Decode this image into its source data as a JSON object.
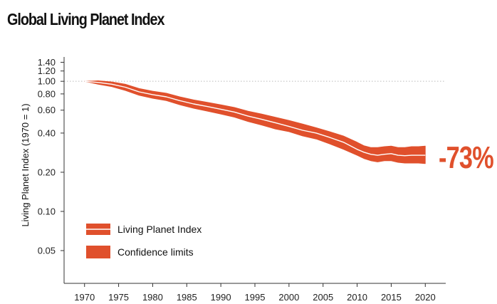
{
  "chart_data": {
    "type": "line",
    "title": "Global Living Planet Index",
    "xlabel": "",
    "ylabel": "Living Planet Index (1970 = 1)",
    "y_scale": "log",
    "xlim": [
      1967,
      2023
    ],
    "ylim": [
      0.028,
      1.5
    ],
    "x_ticks": [
      1970,
      1975,
      1980,
      1985,
      1990,
      1995,
      2000,
      2005,
      2010,
      2015,
      2020
    ],
    "y_ticks": [
      {
        "value": 1.4,
        "label": "1.40"
      },
      {
        "value": 1.2,
        "label": "1.20"
      },
      {
        "value": 1.0,
        "label": "1.00"
      },
      {
        "value": 0.8,
        "label": "0.80"
      },
      {
        "value": 0.6,
        "label": "0.60"
      },
      {
        "value": 0.4,
        "label": "0.40"
      },
      {
        "value": 0.2,
        "label": "0.20"
      },
      {
        "value": 0.1,
        "label": "0.10"
      },
      {
        "value": 0.05,
        "label": "0.05"
      }
    ],
    "reference_line": {
      "value": 1.0,
      "style": "dotted"
    },
    "series": [
      {
        "name": "Living Planet Index",
        "x": [
          1970,
          1972,
          1974,
          1976,
          1978,
          1980,
          1982,
          1984,
          1986,
          1988,
          1990,
          1992,
          1994,
          1996,
          1998,
          2000,
          2002,
          2004,
          2006,
          2008,
          2010,
          2011,
          2012,
          2013,
          2014,
          2015,
          2016,
          2017,
          2018,
          2019,
          2020
        ],
        "values": [
          1.0,
          0.98,
          0.95,
          0.9,
          0.83,
          0.79,
          0.76,
          0.71,
          0.67,
          0.64,
          0.61,
          0.58,
          0.54,
          0.51,
          0.48,
          0.45,
          0.42,
          0.4,
          0.37,
          0.34,
          0.3,
          0.285,
          0.275,
          0.27,
          0.275,
          0.278,
          0.27,
          0.268,
          0.27,
          0.27,
          0.27
        ],
        "lower": [
          1.0,
          0.95,
          0.91,
          0.85,
          0.78,
          0.74,
          0.71,
          0.66,
          0.62,
          0.59,
          0.56,
          0.53,
          0.49,
          0.46,
          0.43,
          0.41,
          0.38,
          0.36,
          0.33,
          0.3,
          0.27,
          0.255,
          0.245,
          0.24,
          0.245,
          0.245,
          0.238,
          0.235,
          0.235,
          0.235,
          0.233
        ],
        "upper": [
          1.0,
          1.01,
          0.99,
          0.95,
          0.88,
          0.84,
          0.81,
          0.76,
          0.72,
          0.69,
          0.66,
          0.63,
          0.59,
          0.56,
          0.53,
          0.5,
          0.47,
          0.44,
          0.41,
          0.38,
          0.34,
          0.32,
          0.31,
          0.31,
          0.315,
          0.318,
          0.31,
          0.31,
          0.315,
          0.315,
          0.318
        ]
      }
    ],
    "annotation": {
      "text": "-73%",
      "x": 2020,
      "y": 0.27
    },
    "legend": {
      "placement": "bottom-left",
      "entries": [
        {
          "label": "Living Planet Index",
          "symbol": "line"
        },
        {
          "label": "Confidence limits",
          "symbol": "band"
        }
      ]
    },
    "colors": {
      "band": "#e0502c",
      "line": "#ffffff",
      "annotation": "#e0502c",
      "axis": "#333333",
      "reference": "#bbbbbb"
    }
  }
}
